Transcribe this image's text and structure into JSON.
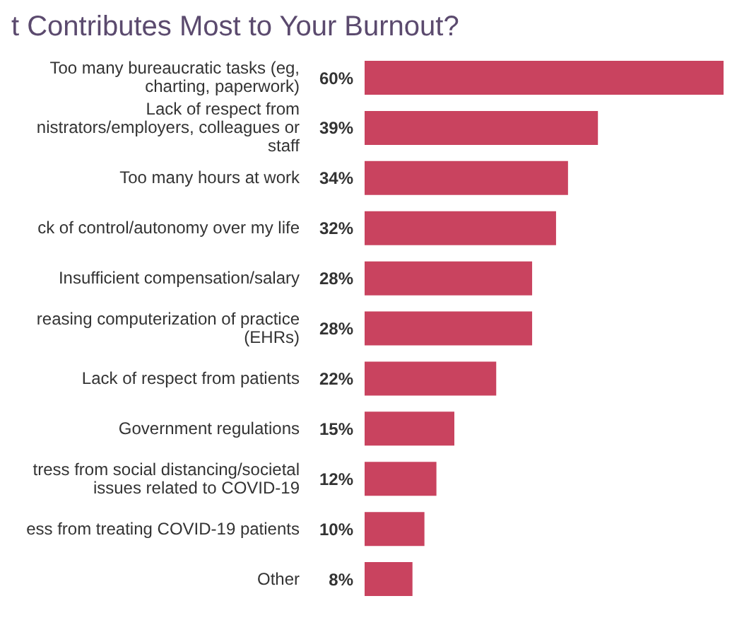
{
  "chart_data": {
    "type": "bar",
    "orientation": "horizontal",
    "title": "t Contributes Most to Your Burnout?",
    "categories": [
      "Too many bureaucratic tasks (eg, charting, paperwork)",
      "Lack of respect from nistrators/employers, colleagues or staff",
      "Too many hours at work",
      "ck of control/autonomy over my life",
      "Insufficient compensation/salary",
      "reasing computerization of practice (EHRs)",
      "Lack of respect from patients",
      "Government regulations",
      "tress from social distancing/societal issues related to COVID-19",
      "ess from treating COVID-19 patients",
      "Other"
    ],
    "values": [
      60,
      39,
      34,
      32,
      28,
      28,
      22,
      15,
      12,
      10,
      8
    ],
    "value_labels": [
      "60%",
      "39%",
      "34%",
      "32%",
      "28%",
      "28%",
      "22%",
      "15%",
      "12%",
      "10%",
      "8%"
    ],
    "color": "#c9435f",
    "grid": false,
    "legend": false
  }
}
